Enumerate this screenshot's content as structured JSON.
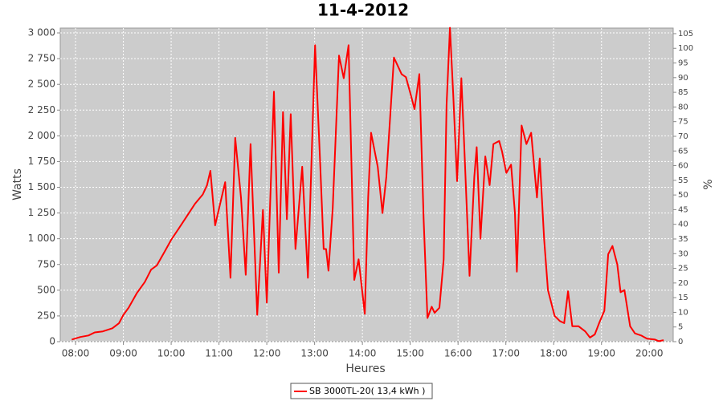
{
  "chart_data": {
    "type": "line",
    "title": "11-4-2012",
    "xlabel": "Heures",
    "ylabel": "Watts",
    "y2label": "%",
    "series": [
      {
        "name": "SB 3000TL-20( 13,4 kWh )",
        "color": "#ff0000",
        "x": [
          7.92,
          8.1,
          8.27,
          8.4,
          8.57,
          8.77,
          8.91,
          9.0,
          9.11,
          9.28,
          9.45,
          9.58,
          9.7,
          9.87,
          10.0,
          10.16,
          10.33,
          10.5,
          10.66,
          10.75,
          10.82,
          10.92,
          11.13,
          11.24,
          11.34,
          11.46,
          11.56,
          11.66,
          11.8,
          11.92,
          12.0,
          12.15,
          12.25,
          12.34,
          12.42,
          12.5,
          12.6,
          12.74,
          12.86,
          13.01,
          13.11,
          13.19,
          13.24,
          13.29,
          13.38,
          13.51,
          13.61,
          13.71,
          13.83,
          13.92,
          14.05,
          14.12,
          14.18,
          14.32,
          14.42,
          14.5,
          14.66,
          14.82,
          14.91,
          15.01,
          15.09,
          15.19,
          15.28,
          15.36,
          15.45,
          15.51,
          15.61,
          15.7,
          15.76,
          15.83,
          15.9,
          15.98,
          16.07,
          16.13,
          16.24,
          16.34,
          16.39,
          16.47,
          16.57,
          16.66,
          16.74,
          16.86,
          16.92,
          17.01,
          17.11,
          17.19,
          17.23,
          17.33,
          17.43,
          17.53,
          17.65,
          17.71,
          17.8,
          17.88,
          18.02,
          18.13,
          18.22,
          18.3,
          18.39,
          18.52,
          18.66,
          18.76,
          18.86,
          18.96,
          19.06,
          19.14,
          19.23,
          19.33,
          19.4,
          19.48,
          19.6,
          19.7,
          19.83,
          19.95,
          20.12,
          20.2,
          20.3
        ],
        "values": [
          20,
          45,
          60,
          90,
          100,
          130,
          180,
          260,
          330,
          470,
          580,
          700,
          740,
          880,
          990,
          1100,
          1220,
          1340,
          1430,
          1520,
          1660,
          1130,
          1550,
          620,
          1980,
          1400,
          650,
          1920,
          260,
          1280,
          380,
          2430,
          670,
          2230,
          1190,
          2210,
          900,
          1700,
          620,
          2880,
          1800,
          900,
          900,
          690,
          1300,
          2780,
          2560,
          2880,
          600,
          800,
          270,
          1400,
          2030,
          1700,
          1250,
          1600,
          2760,
          2600,
          2570,
          2400,
          2260,
          2600,
          1200,
          230,
          340,
          280,
          330,
          800,
          2300,
          3050,
          2400,
          1560,
          2560,
          1900,
          640,
          1600,
          1890,
          1000,
          1800,
          1520,
          1920,
          1950,
          1850,
          1640,
          1720,
          1250,
          680,
          2100,
          1920,
          2030,
          1400,
          1780,
          1000,
          500,
          250,
          200,
          180,
          490,
          150,
          150,
          100,
          40,
          70,
          190,
          300,
          850,
          930,
          750,
          480,
          500,
          150,
          80,
          60,
          30,
          20,
          5,
          15
        ]
      }
    ],
    "xlim": [
      7.68,
      20.5
    ],
    "xticks": [
      {
        "value": 8,
        "label": "08:00"
      },
      {
        "value": 9,
        "label": "09:00"
      },
      {
        "value": 10,
        "label": "10:00"
      },
      {
        "value": 11,
        "label": "11:00"
      },
      {
        "value": 12,
        "label": "12:00"
      },
      {
        "value": 13,
        "label": "13:00"
      },
      {
        "value": 14,
        "label": "14:00"
      },
      {
        "value": 15,
        "label": "15:00"
      },
      {
        "value": 16,
        "label": "16:00"
      },
      {
        "value": 17,
        "label": "17:00"
      },
      {
        "value": 18,
        "label": "18:00"
      },
      {
        "value": 19,
        "label": "19:00"
      },
      {
        "value": 20,
        "label": "20:00"
      }
    ],
    "ylim": [
      0,
      3047
    ],
    "yticks": [
      0,
      250,
      500,
      750,
      {
        "value": 1000,
        "label": "1 000"
      },
      {
        "value": 1250,
        "label": "1 250"
      },
      {
        "value": 1500,
        "label": "1 500"
      },
      {
        "value": 1750,
        "label": "1 750"
      },
      {
        "value": 2000,
        "label": "2 000"
      },
      {
        "value": 2250,
        "label": "2 250"
      },
      {
        "value": 2500,
        "label": "2 500"
      },
      {
        "value": 2750,
        "label": "2 750"
      },
      {
        "value": 3000,
        "label": "3 000"
      }
    ],
    "y2lim": [
      0,
      106.9
    ],
    "y2ticks": [
      0,
      5,
      10,
      15,
      20,
      25,
      30,
      35,
      40,
      45,
      50,
      55,
      60,
      65,
      70,
      75,
      80,
      85,
      90,
      95,
      100,
      105
    ],
    "grid": true,
    "legend": "bottom"
  }
}
